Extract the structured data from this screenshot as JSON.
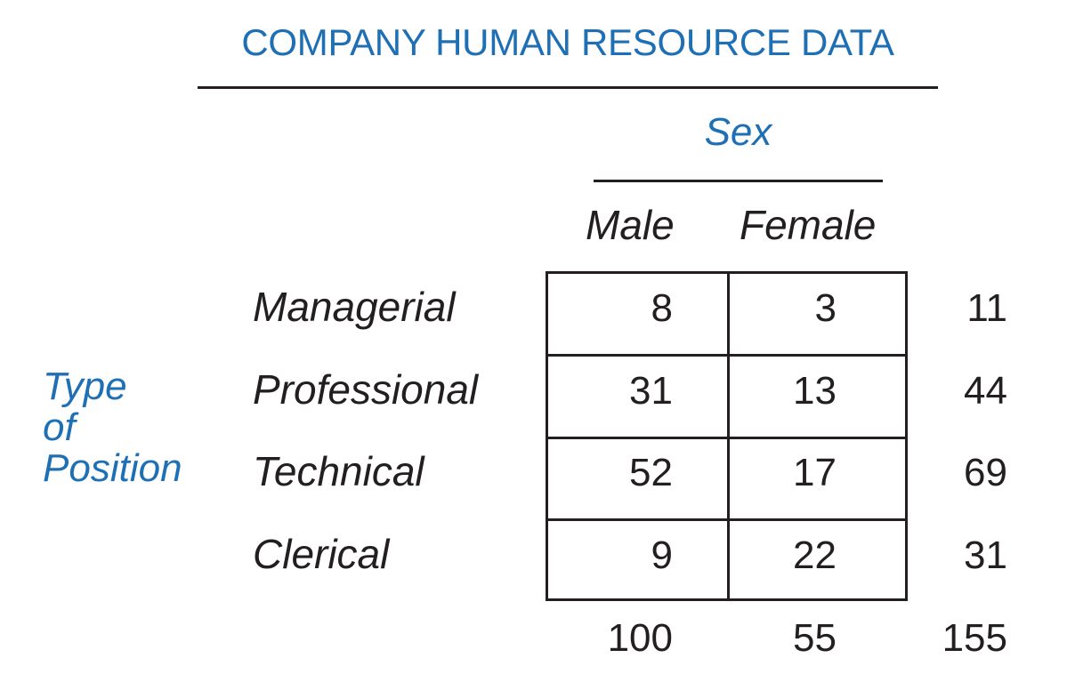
{
  "title": "COMPANY HUMAN RESOURCE DATA",
  "column_group_label": "Sex",
  "columns": [
    "Male",
    "Female"
  ],
  "row_group_label": [
    "Type",
    "of",
    "Position"
  ],
  "rows": [
    {
      "label": "Managerial",
      "male": "8",
      "female": "3",
      "total": "11"
    },
    {
      "label": "Professional",
      "male": "31",
      "female": "13",
      "total": "44"
    },
    {
      "label": "Technical",
      "male": "52",
      "female": "17",
      "total": "69"
    },
    {
      "label": "Clerical",
      "male": "9",
      "female": "22",
      "total": "31"
    }
  ],
  "column_totals": {
    "male": "100",
    "female": "55",
    "grand_total": "155"
  },
  "colors": {
    "accent": "#1f6fb5",
    "text": "#231f20",
    "background": "#ffffff"
  }
}
